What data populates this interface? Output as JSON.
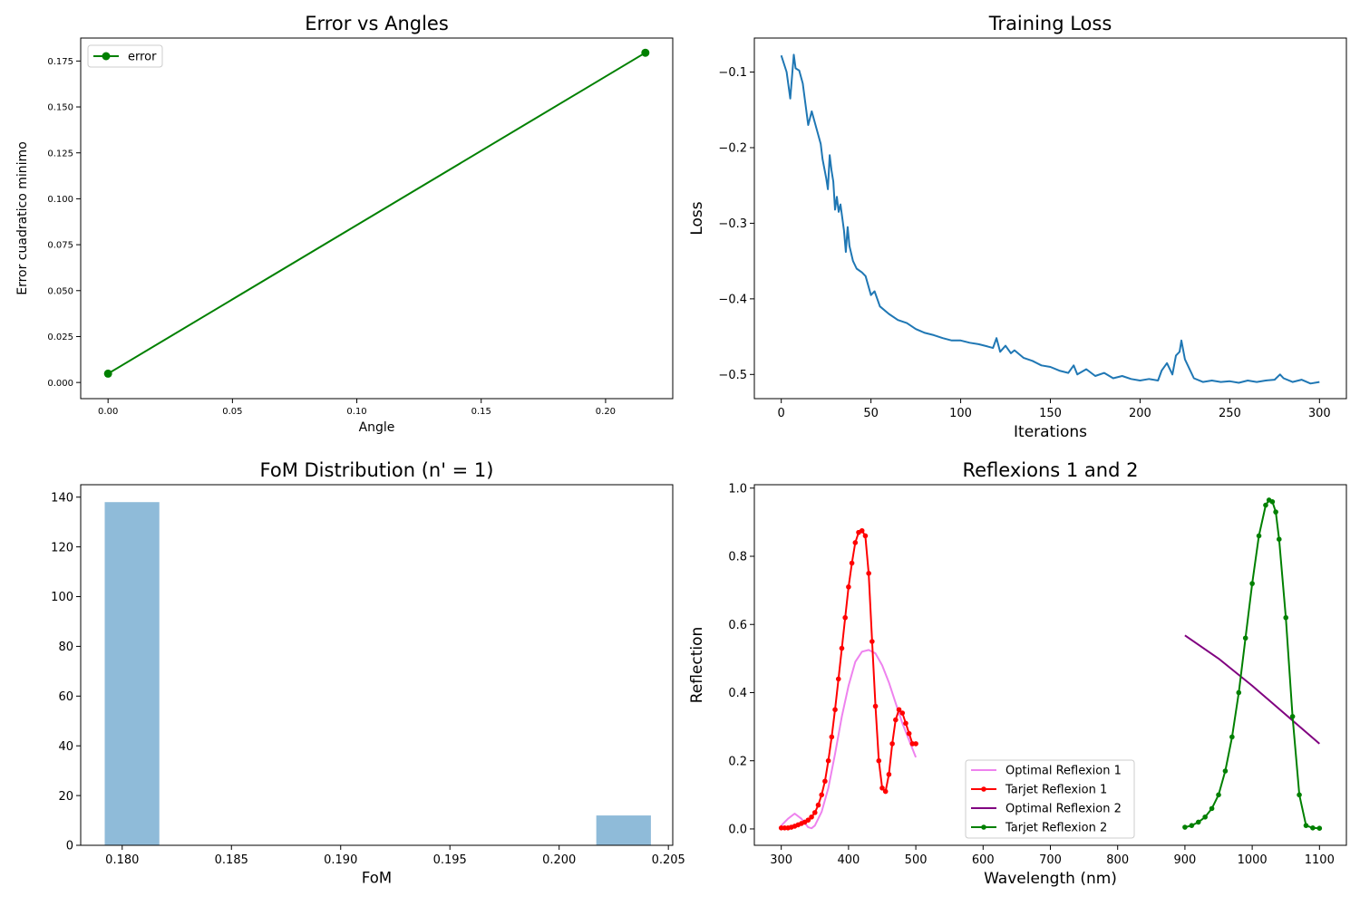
{
  "chart_data": [
    {
      "type": "line",
      "title": "Error vs Angles",
      "xlabel": "Angle",
      "ylabel": "Error cuadratico minimo",
      "xlim": [
        -0.011,
        0.227
      ],
      "ylim": [
        -0.0088,
        0.1875
      ],
      "xticks": [
        0.0,
        0.05,
        0.1,
        0.15,
        0.2
      ],
      "xtick_labels": [
        "0.00",
        "0.05",
        "0.10",
        "0.15",
        "0.20"
      ],
      "yticks": [
        0.0,
        0.025,
        0.05,
        0.075,
        0.1,
        0.125,
        0.15,
        0.175
      ],
      "ytick_labels": [
        "0.000",
        "0.025",
        "0.050",
        "0.075",
        "0.100",
        "0.125",
        "0.150",
        "0.175"
      ],
      "legend": "upper-left",
      "grid": false,
      "series": [
        {
          "name": "error",
          "color": "#008000",
          "marker": "circle",
          "x": [
            0.0,
            0.216
          ],
          "y": [
            0.0048,
            0.1795
          ]
        }
      ]
    },
    {
      "type": "line",
      "title": "Training Loss",
      "xlabel": "Iterations",
      "ylabel": "Loss",
      "xlim": [
        -15,
        315
      ],
      "ylim": [
        -0.532,
        -0.055
      ],
      "xticks": [
        0,
        50,
        100,
        150,
        200,
        250,
        300
      ],
      "xtick_labels": [
        "0",
        "50",
        "100",
        "150",
        "200",
        "250",
        "300"
      ],
      "yticks": [
        -0.5,
        -0.4,
        -0.3,
        -0.2,
        -0.1
      ],
      "ytick_labels": [
        "−0.5",
        "−0.4",
        "−0.3",
        "−0.2",
        "−0.1"
      ],
      "grid": false,
      "series": [
        {
          "color": "#1f77b4",
          "x": [
            0,
            3,
            5,
            7,
            8,
            10,
            12,
            15,
            17,
            20,
            22,
            23,
            25,
            26,
            27,
            28,
            29,
            30,
            31,
            32,
            33,
            35,
            36,
            37,
            38,
            40,
            42,
            45,
            47,
            50,
            52,
            55,
            60,
            65,
            70,
            75,
            80,
            85,
            90,
            95,
            100,
            105,
            110,
            115,
            118,
            120,
            122,
            125,
            128,
            130,
            135,
            140,
            145,
            150,
            155,
            160,
            163,
            165,
            170,
            175,
            180,
            185,
            190,
            195,
            200,
            205,
            210,
            212,
            215,
            218,
            220,
            222,
            223,
            225,
            228,
            230,
            235,
            240,
            245,
            250,
            255,
            260,
            265,
            270,
            275,
            278,
            280,
            285,
            290,
            295,
            300
          ],
          "y": [
            -0.078,
            -0.1,
            -0.135,
            -0.077,
            -0.095,
            -0.098,
            -0.115,
            -0.17,
            -0.152,
            -0.178,
            -0.195,
            -0.215,
            -0.24,
            -0.255,
            -0.21,
            -0.23,
            -0.245,
            -0.282,
            -0.265,
            -0.285,
            -0.275,
            -0.31,
            -0.338,
            -0.305,
            -0.33,
            -0.35,
            -0.36,
            -0.365,
            -0.37,
            -0.395,
            -0.39,
            -0.41,
            -0.42,
            -0.428,
            -0.432,
            -0.44,
            -0.445,
            -0.448,
            -0.452,
            -0.455,
            -0.455,
            -0.458,
            -0.46,
            -0.463,
            -0.465,
            -0.452,
            -0.47,
            -0.462,
            -0.472,
            -0.468,
            -0.478,
            -0.482,
            -0.488,
            -0.49,
            -0.495,
            -0.498,
            -0.488,
            -0.5,
            -0.493,
            -0.502,
            -0.498,
            -0.505,
            -0.502,
            -0.506,
            -0.508,
            -0.506,
            -0.508,
            -0.495,
            -0.485,
            -0.5,
            -0.475,
            -0.47,
            -0.455,
            -0.48,
            -0.495,
            -0.505,
            -0.51,
            -0.508,
            -0.51,
            -0.509,
            -0.511,
            -0.508,
            -0.51,
            -0.508,
            -0.507,
            -0.5,
            -0.505,
            -0.51,
            -0.507,
            -0.512,
            -0.51
          ]
        }
      ]
    },
    {
      "type": "bar",
      "title": "FoM Distribution (n' = 1)",
      "xlabel": "FoM",
      "ylabel": "",
      "xlim": [
        0.1781,
        0.2052
      ],
      "ylim": [
        0,
        145
      ],
      "xticks": [
        0.18,
        0.185,
        0.19,
        0.195,
        0.2,
        0.205
      ],
      "xtick_labels": [
        "0.180",
        "0.185",
        "0.190",
        "0.195",
        "0.200",
        "0.205"
      ],
      "yticks": [
        0,
        20,
        40,
        60,
        80,
        100,
        120,
        140
      ],
      "ytick_labels": [
        "0",
        "20",
        "40",
        "60",
        "80",
        "100",
        "120",
        "140"
      ],
      "color": "#8fbbd9",
      "grid": false,
      "bins": [
        {
          "x0": 0.1792,
          "x1": 0.1817,
          "count": 138
        },
        {
          "x0": 0.2017,
          "x1": 0.2042,
          "count": 12
        }
      ]
    },
    {
      "type": "line",
      "title": "Reflexions 1 and 2",
      "xlabel": "Wavelength (nm)",
      "ylabel": "Reflection",
      "xlim": [
        260,
        1140
      ],
      "ylim": [
        -0.048,
        1.01
      ],
      "xticks": [
        300,
        400,
        500,
        600,
        700,
        800,
        900,
        1000,
        1100
      ],
      "xtick_labels": [
        "300",
        "400",
        "500",
        "600",
        "700",
        "800",
        "900",
        "1000",
        "1100"
      ],
      "yticks": [
        0.0,
        0.2,
        0.4,
        0.6,
        0.8,
        1.0
      ],
      "ytick_labels": [
        "0.0",
        "0.2",
        "0.4",
        "0.6",
        "0.8",
        "1.0"
      ],
      "legend": "lower-center",
      "grid": false,
      "series": [
        {
          "name": "Optimal Reflexion 1",
          "color": "#ee82ee",
          "marker": "none",
          "x": [
            300,
            310,
            320,
            330,
            340,
            345,
            350,
            360,
            370,
            380,
            390,
            400,
            410,
            420,
            430,
            440,
            450,
            460,
            470,
            480,
            490,
            500
          ],
          "y": [
            0.01,
            0.03,
            0.045,
            0.03,
            0.005,
            0.002,
            0.01,
            0.05,
            0.12,
            0.22,
            0.33,
            0.42,
            0.49,
            0.52,
            0.525,
            0.515,
            0.48,
            0.43,
            0.37,
            0.31,
            0.26,
            0.21
          ]
        },
        {
          "name": "Tarjet Reflexion 1",
          "color": "#ff0000",
          "marker": "dot",
          "x": [
            300,
            305,
            310,
            315,
            320,
            325,
            330,
            335,
            340,
            345,
            350,
            355,
            360,
            365,
            370,
            375,
            380,
            385,
            390,
            395,
            400,
            405,
            410,
            415,
            420,
            425,
            430,
            435,
            440,
            445,
            450,
            455,
            460,
            465,
            470,
            475,
            480,
            485,
            490,
            495,
            500
          ],
          "y": [
            0.003,
            0.003,
            0.003,
            0.005,
            0.008,
            0.012,
            0.016,
            0.02,
            0.026,
            0.035,
            0.048,
            0.07,
            0.1,
            0.14,
            0.2,
            0.27,
            0.35,
            0.44,
            0.53,
            0.62,
            0.71,
            0.78,
            0.84,
            0.87,
            0.875,
            0.86,
            0.75,
            0.55,
            0.36,
            0.2,
            0.12,
            0.11,
            0.16,
            0.25,
            0.32,
            0.35,
            0.34,
            0.31,
            0.28,
            0.25,
            0.25
          ]
        },
        {
          "name": "Optimal Reflexion 2",
          "color": "#800080",
          "marker": "none",
          "x": [
            900,
            950,
            1000,
            1050,
            1100
          ],
          "y": [
            0.568,
            0.5,
            0.42,
            0.335,
            0.25
          ]
        },
        {
          "name": "Tarjet Reflexion 2",
          "color": "#008000",
          "marker": "dot",
          "x": [
            900,
            910,
            920,
            930,
            940,
            950,
            960,
            970,
            980,
            990,
            1000,
            1010,
            1020,
            1025,
            1030,
            1035,
            1040,
            1050,
            1060,
            1070,
            1080,
            1090,
            1100
          ],
          "y": [
            0.005,
            0.01,
            0.02,
            0.035,
            0.06,
            0.1,
            0.17,
            0.27,
            0.4,
            0.56,
            0.72,
            0.86,
            0.95,
            0.965,
            0.96,
            0.93,
            0.85,
            0.62,
            0.33,
            0.1,
            0.01,
            0.003,
            0.002
          ]
        }
      ]
    }
  ]
}
